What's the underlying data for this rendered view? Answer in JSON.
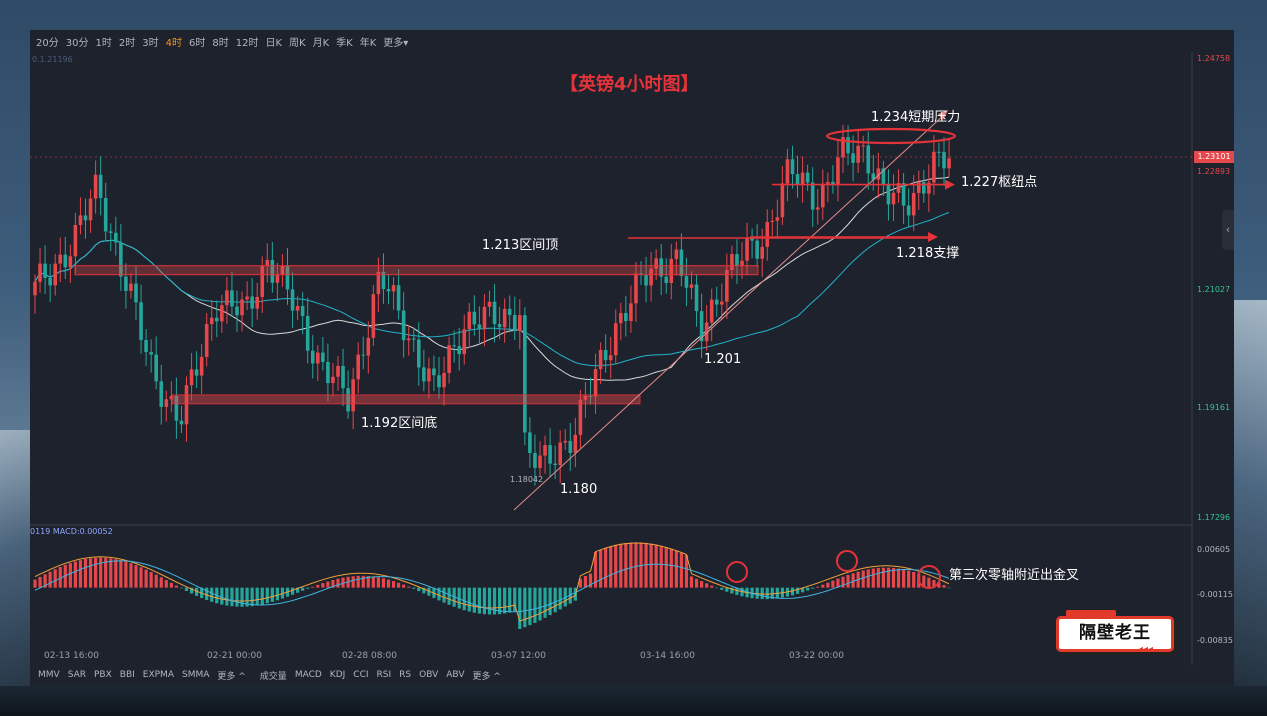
{
  "toolbar": {
    "timeframes": [
      "20分",
      "30分",
      "1时",
      "2时",
      "3时",
      "4时",
      "6时",
      "8时",
      "12时",
      "日K",
      "周K",
      "月K",
      "季K",
      "年K",
      "更多▾"
    ],
    "active_index": 5
  },
  "top_left_value": "0.1.21196",
  "title": "【英镑4小时图】",
  "chart_data": {
    "type": "candlestick",
    "title": "【英镑4小时图】",
    "price_axis_ticks": [
      "1.24758",
      "1.22893",
      "1.21027",
      "1.19161",
      "1.17296"
    ],
    "current_price": "1.23101",
    "x_ticks": [
      "02-13 16:00",
      "02-21 00:00",
      "02-28 08:00",
      "03-07 12:00",
      "03-14 16:00",
      "03-22 00:00"
    ],
    "low_marker": "1.18042",
    "levels": {
      "range_top": 1.213,
      "range_bottom": 1.192,
      "low": 1.18,
      "swing_low": 1.201,
      "resistance": 1.234,
      "pivot": 1.227,
      "support": 1.218
    },
    "annotations": [
      "1.213区间顶",
      "1.192区间底",
      "1.180",
      "1.201",
      "1.234短期压力",
      "1.227枢纽点",
      "1.218支撑",
      "第三次零轴附近出金叉"
    ],
    "macd": {
      "label_prefix": "0119",
      "label": "MACD:0.00052",
      "ticks": [
        "0.00605",
        "-0.00115",
        "-0.00835"
      ]
    }
  },
  "indicators_main": [
    "MMV",
    "SAR",
    "PBX",
    "BBI",
    "EXPMA",
    "SMMA",
    "更多 ^"
  ],
  "indicators_sub": [
    "成交量",
    "MACD",
    "KDJ",
    "CCI",
    "RSI",
    "RS",
    "OBV",
    "ABV",
    "更多 ^"
  ],
  "side_tab_icon": "chevron-left-icon",
  "side_tab_glyph": "‹",
  "logo": {
    "text": "隔壁老王",
    "arrows": "◂◂◂"
  },
  "colors": {
    "up": "#e5474b",
    "down": "#26a69a",
    "ma_white": "#d9d9d9",
    "ma_blue": "#1fb5c9",
    "annotation_red": "#e5333a"
  }
}
